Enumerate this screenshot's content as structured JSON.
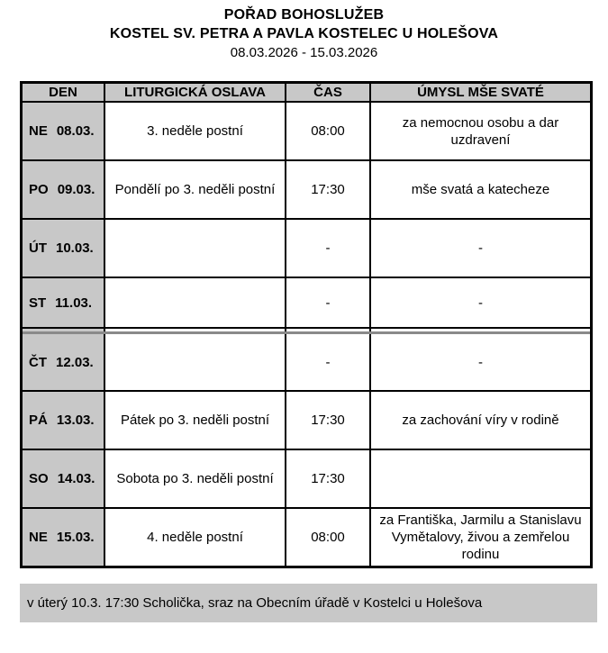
{
  "header": {
    "title": "POŘAD BOHOSLUŽEB",
    "church": "KOSTEL SV. PETRA A PAVLA KOSTELEC U HOLEŠOVA",
    "date_range": "08.03.2026 - 15.03.2026"
  },
  "table": {
    "columns": [
      "DEN",
      "LITURGICKÁ OSLAVA",
      "ČAS",
      "ÚMYSL MŠE SVATÉ"
    ],
    "rows": [
      {
        "day": "NE",
        "date": "08.03.",
        "celebration": "3. neděle postní",
        "time": "08:00",
        "intention": "za nemocnou osobu a dar\nuzdravení"
      },
      {
        "day": "PO",
        "date": "09.03.",
        "celebration": "Pondělí po 3. neděli postní",
        "time": "17:30",
        "intention": "mše svatá a katecheze"
      },
      {
        "day": "ÚT",
        "date": "10.03.",
        "celebration": "",
        "time": "-",
        "intention": "-"
      },
      {
        "day": "ST",
        "date": "11.03.",
        "celebration": "",
        "time": "-",
        "intention": "-"
      },
      {
        "day": "ČT",
        "date": "12.03.",
        "celebration": "",
        "time": "-",
        "intention": "-"
      },
      {
        "day": "PÁ",
        "date": "13.03.",
        "celebration": "Pátek po 3. neděli postní",
        "time": "17:30",
        "intention": "za zachování víry v rodině"
      },
      {
        "day": "SO",
        "date": "14.03.",
        "celebration": "Sobota po 3. neděli postní",
        "time": "17:30",
        "intention": ""
      },
      {
        "day": "NE",
        "date": "15.03.",
        "celebration": "4. neděle postní",
        "time": "08:00",
        "intention": "za Františka, Jarmilu a Stanislavu\nVymětalovy, živou a zemřelou\nrodinu"
      }
    ]
  },
  "note": {
    "text": "v úterý 10.3. 17:30 Scholička, sraz na Obecním úřadě v Kostelci u Holešova"
  },
  "colors": {
    "table_gray": "#c8c8c8",
    "border_black": "#000000",
    "page_break_gray": "#8a8a8a"
  }
}
